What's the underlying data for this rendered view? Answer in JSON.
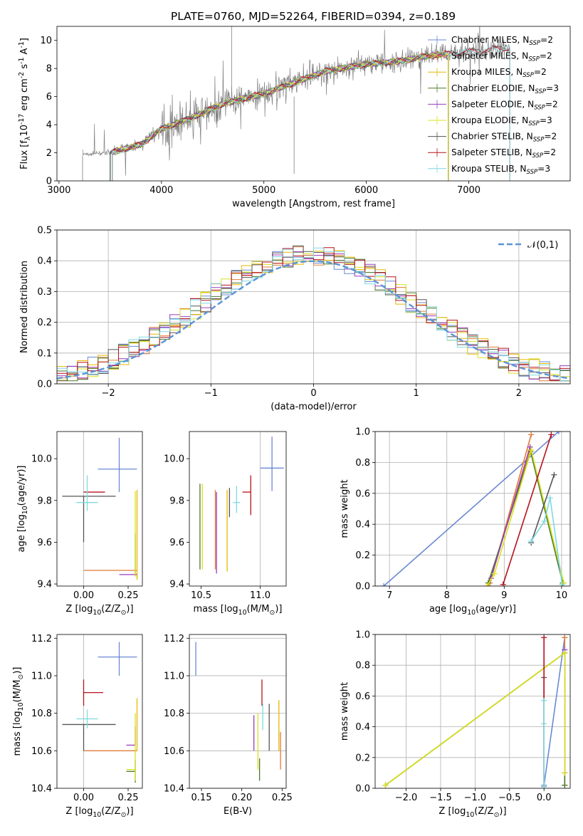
{
  "figure_title": "PLATE=0760, MJD=52264, FIBERID=0394, z=0.189",
  "colors": {
    "data": "#808080",
    "normal": "#5b93d6",
    "Chabrier MILES": "#6a89d4",
    "Salpeter MILES": "#e07b39",
    "Kroupa MILES": "#e6b800",
    "Chabrier ELODIE": "#4a7a2b",
    "Salpeter ELODIE": "#9a3dbd",
    "Kroupa ELODIE": "#d9e021",
    "Chabrier STELIB": "#555555",
    "Salpeter STELIB": "#b5121b",
    "Kroupa STELIB": "#7fd9e0"
  },
  "legend_models": [
    "Chabrier MILES, N$_{SSP}$=2",
    "Salpeter MILES, N$_{SSP}$=2",
    "Kroupa MILES, N$_{SSP}$=2",
    "Chabrier ELODIE, N$_{SSP}$=3",
    "Salpeter ELODIE, N$_{SSP}$=2",
    "Kroupa ELODIE, N$_{SSP}$=3",
    "Chabrier STELIB, N$_{SSP}$=2",
    "Salpeter STELIB, N$_{SSP}$=2",
    "Kroupa STELIB, N$_{SSP}$=3"
  ],
  "legend_display": [
    {
      "base": "Chabrier MILES, N",
      "sub": "SSP",
      "tail": "=2"
    },
    {
      "base": "Salpeter MILES, N",
      "sub": "SSP",
      "tail": "=2"
    },
    {
      "base": "Kroupa MILES, N",
      "sub": "SSP",
      "tail": "=2"
    },
    {
      "base": "Chabrier ELODIE, N",
      "sub": "SSP",
      "tail": "=3"
    },
    {
      "base": "Salpeter ELODIE, N",
      "sub": "SSP",
      "tail": "=2"
    },
    {
      "base": "Kroupa ELODIE, N",
      "sub": "SSP",
      "tail": "=3"
    },
    {
      "base": "Chabrier STELIB, N",
      "sub": "SSP",
      "tail": "=2"
    },
    {
      "base": "Salpeter STELIB, N",
      "sub": "SSP",
      "tail": "=2"
    },
    {
      "base": "Kroupa STELIB, N",
      "sub": "SSP",
      "tail": "=3"
    }
  ],
  "chart_data": [
    {
      "id": "spectrum",
      "type": "line",
      "xlabel": "wavelength [Angstrom, rest frame]",
      "ylabel": "Flux [f$_\\lambda$10$^{-17}$ erg cm$^{-2}$ s$^{-1}$ A$^{-1}$]",
      "xlim": [
        2980,
        7990
      ],
      "ylim": [
        0,
        11
      ],
      "xticks": [
        3000,
        4000,
        5000,
        6000,
        7000
      ],
      "yticks": [
        0,
        2,
        4,
        6,
        8,
        10
      ],
      "grid": false,
      "legend_position": "top-right",
      "data_trend": {
        "x": [
          3230,
          3500,
          3800,
          4000,
          4300,
          4600,
          5000,
          5300,
          5600,
          6000,
          6300,
          6600,
          7000,
          7400
        ],
        "y": [
          1.9,
          2.0,
          2.6,
          3.7,
          4.5,
          5.5,
          6.2,
          7.0,
          7.8,
          8.3,
          8.5,
          8.9,
          9.2,
          9.5
        ]
      },
      "model_x_range": [
        3500,
        6800
      ]
    },
    {
      "id": "residual_histogram",
      "type": "step",
      "xlabel": "(data-model)/error",
      "ylabel": "Normed distribution",
      "xlim": [
        -2.5,
        2.5
      ],
      "ylim": [
        0,
        0.5
      ],
      "xticks": [
        -2,
        -1,
        0,
        1,
        2
      ],
      "yticks": [
        0.0,
        0.1,
        0.2,
        0.3,
        0.4,
        0.5
      ],
      "grid": true,
      "legend": [
        "$\\mathcal{N}(0,1)$"
      ],
      "legend_position": "top-right",
      "bin_width": 0.1
    },
    {
      "id": "age_vs_Z",
      "type": "errorbar",
      "xlabel": "Z [log$_{10}$(Z/Z$_\\odot$)]",
      "ylabel": "age  [log$_{10}$(age/yr)]",
      "xlim": [
        -0.15,
        0.33
      ],
      "ylim": [
        9.39,
        10.13
      ],
      "xticks": [
        0.0,
        0.25
      ],
      "yticks": [
        9.4,
        9.6,
        9.8,
        10.0
      ],
      "points": [
        {
          "model": "Chabrier MILES",
          "x": 0.2,
          "y": 9.95,
          "xerr": [
            0.12,
            0.1
          ],
          "yerr": [
            0.11,
            0.15
          ]
        },
        {
          "model": "Salpeter MILES",
          "x": 0.12,
          "y": 9.465,
          "xerr": [
            0.12,
            0.18
          ],
          "yerr": [
            0.0,
            0.0
          ]
        },
        {
          "model": "Kroupa MILES",
          "x": 0.3,
          "y": 9.45,
          "xerr": [
            0.0,
            0.0
          ],
          "yerr": [
            0.03,
            0.4
          ]
        },
        {
          "model": "Chabrier ELODIE",
          "x": 0.29,
          "y": 9.44,
          "xerr": [
            0.0,
            0.0
          ],
          "yerr": [
            0.0,
            0.2
          ]
        },
        {
          "model": "Salpeter ELODIE",
          "x": 0.25,
          "y": 9.445,
          "xerr": [
            0.05,
            0.05
          ],
          "yerr": [
            0.0,
            0.0
          ]
        },
        {
          "model": "Kroupa ELODIE",
          "x": 0.29,
          "y": 9.465,
          "xerr": [
            0.0,
            0.0
          ],
          "yerr": [
            0.03,
            0.38
          ]
        },
        {
          "model": "Chabrier STELIB",
          "x": 0.0,
          "y": 9.82,
          "xerr": [
            0.12,
            0.18
          ],
          "yerr": [
            0.22,
            0.0
          ]
        },
        {
          "model": "Salpeter STELIB",
          "x": 0.04,
          "y": 9.84,
          "xerr": [
            0.04,
            0.08
          ],
          "yerr": [
            0.0,
            0.0
          ]
        },
        {
          "model": "Kroupa STELIB",
          "x": 0.02,
          "y": 9.79,
          "xerr": [
            0.06,
            0.06
          ],
          "yerr": [
            0.04,
            0.13
          ]
        }
      ]
    },
    {
      "id": "age_vs_mass",
      "type": "errorbar",
      "xlabel": "mass [log$_{10}$(M/M$_\\odot$)]",
      "ylabel": "",
      "xlim": [
        10.4,
        11.22
      ],
      "ylim": [
        9.39,
        10.13
      ],
      "xticks": [
        10.5,
        11.0
      ],
      "yticks": [
        9.4,
        9.6,
        9.8,
        10.0
      ],
      "points": [
        {
          "model": "Chabrier MILES",
          "x": 11.1,
          "y": 9.955,
          "xerr": [
            0.1,
            0.1
          ],
          "yerr": [
            0.11,
            0.15
          ]
        },
        {
          "model": "Salpeter MILES",
          "x": 10.62,
          "y": 9.47,
          "xerr": [
            0.0,
            0.0
          ],
          "yerr": [
            0.0,
            0.38
          ]
        },
        {
          "model": "Kroupa MILES",
          "x": 10.72,
          "y": 9.46,
          "xerr": [
            0.0,
            0.0
          ],
          "yerr": [
            0.0,
            0.39
          ]
        },
        {
          "model": "Chabrier ELODIE",
          "x": 10.49,
          "y": 9.47,
          "xerr": [
            0.0,
            0.0
          ],
          "yerr": [
            0.0,
            0.41
          ]
        },
        {
          "model": "Salpeter ELODIE",
          "x": 10.63,
          "y": 9.45,
          "xerr": [
            0.0,
            0.0
          ],
          "yerr": [
            0.0,
            0.39
          ]
        },
        {
          "model": "Kroupa ELODIE",
          "x": 10.51,
          "y": 9.47,
          "xerr": [
            0.0,
            0.0
          ],
          "yerr": [
            0.0,
            0.41
          ]
        },
        {
          "model": "Chabrier STELIB",
          "x": 10.74,
          "y": 9.79,
          "xerr": [
            0.0,
            0.0
          ],
          "yerr": [
            0.07,
            0.07
          ]
        },
        {
          "model": "Salpeter STELIB",
          "x": 10.92,
          "y": 9.84,
          "xerr": [
            0.07,
            0.0
          ],
          "yerr": [
            0.11,
            0.08
          ]
        },
        {
          "model": "Kroupa STELIB",
          "x": 10.8,
          "y": 9.79,
          "xerr": [
            0.03,
            0.03
          ],
          "yerr": [
            0.05,
            0.08
          ]
        }
      ]
    },
    {
      "id": "mass_weight_vs_age",
      "type": "line",
      "xlabel": "age  [log$_{10}$(age/yr)]",
      "ylabel": "mass weight",
      "xlim": [
        6.75,
        10.15
      ],
      "ylim": [
        0,
        1
      ],
      "xticks": [
        7,
        8,
        9,
        10
      ],
      "yticks": [
        0.0,
        0.2,
        0.4,
        0.6,
        0.8,
        1.0
      ],
      "grid": true,
      "series": [
        {
          "model": "Chabrier MILES",
          "x": [
            6.9,
            9.95
          ],
          "y": [
            0.0,
            1.0
          ]
        },
        {
          "model": "Salpeter MILES",
          "x": [
            8.75,
            9.47
          ],
          "y": [
            0.02,
            0.98
          ]
        },
        {
          "model": "Kroupa MILES",
          "x": [
            8.72,
            9.45
          ],
          "y": [
            0.0,
            0.88
          ]
        },
        {
          "model": "Chabrier ELODIE",
          "x": [
            8.72,
            9.46,
            10.02
          ],
          "y": [
            0.02,
            0.87,
            0.02
          ]
        },
        {
          "model": "Salpeter ELODIE",
          "x": [
            8.77,
            9.45
          ],
          "y": [
            0.05,
            0.9
          ]
        },
        {
          "model": "Kroupa ELODIE",
          "x": [
            8.7,
            8.83,
            9.47,
            10.04
          ],
          "y": [
            0.0,
            0.08,
            0.88,
            0.02
          ]
        },
        {
          "model": "Chabrier STELIB",
          "x": [
            9.47,
            9.87
          ],
          "y": [
            0.28,
            0.72
          ]
        },
        {
          "model": "Salpeter STELIB",
          "x": [
            8.98,
            9.82
          ],
          "y": [
            0.01,
            0.98
          ]
        },
        {
          "model": "Kroupa STELIB",
          "x": [
            9.47,
            9.7,
            9.8,
            10.01
          ],
          "y": [
            0.29,
            0.42,
            0.57,
            0.01
          ]
        }
      ]
    },
    {
      "id": "mass_vs_Z",
      "type": "errorbar",
      "xlabel": "Z [log$_{10}$(Z/Z$_\\odot$)]",
      "ylabel": "mass [log$_{10}$(M/M$_\\odot$)]",
      "xlim": [
        -0.15,
        0.33
      ],
      "ylim": [
        10.4,
        11.22
      ],
      "xticks": [
        0.0,
        0.25
      ],
      "yticks": [
        10.4,
        10.6,
        10.8,
        11.0,
        11.2
      ],
      "points": [
        {
          "model": "Chabrier MILES",
          "x": 0.2,
          "y": 11.1,
          "xerr": [
            0.12,
            0.1
          ],
          "yerr": [
            0.1,
            0.08
          ]
        },
        {
          "model": "Salpeter MILES",
          "x": 0.15,
          "y": 10.6,
          "xerr": [
            0.15,
            0.15
          ],
          "yerr": [
            0.0,
            0.0
          ]
        },
        {
          "model": "Kroupa MILES",
          "x": 0.3,
          "y": 10.6,
          "xerr": [
            0.0,
            0.0
          ],
          "yerr": [
            0.0,
            0.28
          ]
        },
        {
          "model": "Chabrier ELODIE",
          "x": 0.29,
          "y": 10.49,
          "xerr": [
            0.05,
            0.0
          ],
          "yerr": [
            0.06,
            0.06
          ]
        },
        {
          "model": "Salpeter ELODIE",
          "x": 0.29,
          "y": 10.63,
          "xerr": [
            0.05,
            0.0
          ],
          "yerr": [
            0.0,
            0.1
          ]
        },
        {
          "model": "Kroupa ELODIE",
          "x": 0.29,
          "y": 10.5,
          "xerr": [
            0.05,
            0.0
          ],
          "yerr": [
            0.06,
            0.3
          ]
        },
        {
          "model": "Chabrier STELIB",
          "x": 0.0,
          "y": 10.74,
          "xerr": [
            0.12,
            0.18
          ],
          "yerr": [
            0.14,
            0.0
          ]
        },
        {
          "model": "Salpeter STELIB",
          "x": 0.0,
          "y": 10.91,
          "xerr": [
            0.0,
            0.11
          ],
          "yerr": [
            0.07,
            0.07
          ]
        },
        {
          "model": "Kroupa STELIB",
          "x": 0.02,
          "y": 10.77,
          "xerr": [
            0.06,
            0.06
          ],
          "yerr": [
            0.05,
            0.05
          ]
        }
      ]
    },
    {
      "id": "mass_vs_EBV",
      "type": "errorbar",
      "xlabel": "E(B-V)",
      "ylabel": "",
      "xlim": [
        0.135,
        0.255
      ],
      "ylim": [
        10.4,
        11.22
      ],
      "xticks": [
        0.15,
        0.2,
        0.25
      ],
      "yticks": [
        10.4,
        10.6,
        10.8,
        11.0,
        11.2
      ],
      "points": [
        {
          "model": "Chabrier MILES",
          "x": 0.143,
          "y": 11.1,
          "xerr": [
            0,
            0
          ],
          "yerr": [
            0.1,
            0.08
          ]
        },
        {
          "model": "Salpeter MILES",
          "x": 0.248,
          "y": 10.6,
          "xerr": [
            0,
            0
          ],
          "yerr": [
            0.1,
            0.1
          ]
        },
        {
          "model": "Kroupa MILES",
          "x": 0.246,
          "y": 10.7,
          "xerr": [
            0,
            0
          ],
          "yerr": [
            0.1,
            0.17
          ]
        },
        {
          "model": "Chabrier ELODIE",
          "x": 0.222,
          "y": 10.5,
          "xerr": [
            0,
            0
          ],
          "yerr": [
            0.06,
            0.06
          ]
        },
        {
          "model": "Salpeter ELODIE",
          "x": 0.215,
          "y": 10.7,
          "xerr": [
            0,
            0
          ],
          "yerr": [
            0.1,
            0.09
          ]
        },
        {
          "model": "Kroupa ELODIE",
          "x": 0.22,
          "y": 10.55,
          "xerr": [
            0,
            0
          ],
          "yerr": [
            0.05,
            0.25
          ]
        },
        {
          "model": "Chabrier STELIB",
          "x": 0.234,
          "y": 10.69,
          "xerr": [
            0,
            0
          ],
          "yerr": [
            0.09,
            0.16
          ]
        },
        {
          "model": "Salpeter STELIB",
          "x": 0.225,
          "y": 10.91,
          "xerr": [
            0,
            0
          ],
          "yerr": [
            0.07,
            0.07
          ]
        },
        {
          "model": "Kroupa STELIB",
          "x": 0.226,
          "y": 10.78,
          "xerr": [
            0,
            0
          ],
          "yerr": [
            0.07,
            0.07
          ]
        }
      ]
    },
    {
      "id": "mass_weight_vs_Z",
      "type": "line",
      "xlabel": "Z [log$_{10}$(Z/Z$_\\odot$)]",
      "ylabel": "mass weight",
      "xlim": [
        -2.45,
        0.38
      ],
      "ylim": [
        0,
        1
      ],
      "xticks": [
        -2.0,
        -1.5,
        -1.0,
        -0.5,
        0.0
      ],
      "yticks": [
        0.0,
        0.2,
        0.4,
        0.6,
        0.8,
        1.0
      ],
      "grid": true,
      "series": [
        {
          "model": "Chabrier MILES",
          "x": [
            0.0,
            0.3
          ],
          "y": [
            0.02,
            0.98
          ]
        },
        {
          "model": "Salpeter MILES",
          "x": [
            0.3,
            0.3
          ],
          "y": [
            0.02,
            0.98
          ]
        },
        {
          "model": "Kroupa MILES",
          "x": [
            -2.3,
            0.3
          ],
          "y": [
            0.02,
            0.88
          ]
        },
        {
          "model": "Chabrier ELODIE",
          "x": [
            -2.3,
            0.3,
            0.3
          ],
          "y": [
            0.02,
            0.88,
            0.02
          ]
        },
        {
          "model": "Salpeter ELODIE",
          "x": [
            0.3,
            0.3
          ],
          "y": [
            0.1,
            0.9
          ]
        },
        {
          "model": "Kroupa ELODIE",
          "x": [
            -2.3,
            0.3,
            0.3
          ],
          "y": [
            0.02,
            0.88,
            0.1
          ]
        },
        {
          "model": "Chabrier STELIB",
          "x": [
            0.0,
            0.0
          ],
          "y": [
            0.01,
            0.72
          ]
        },
        {
          "model": "Salpeter STELIB",
          "x": [
            0.0,
            0.0
          ],
          "y": [
            0.01,
            0.98
          ]
        },
        {
          "model": "Kroupa STELIB",
          "x": [
            0.0,
            0.0,
            0.0
          ],
          "y": [
            0.01,
            0.42,
            0.57
          ]
        }
      ]
    }
  ]
}
